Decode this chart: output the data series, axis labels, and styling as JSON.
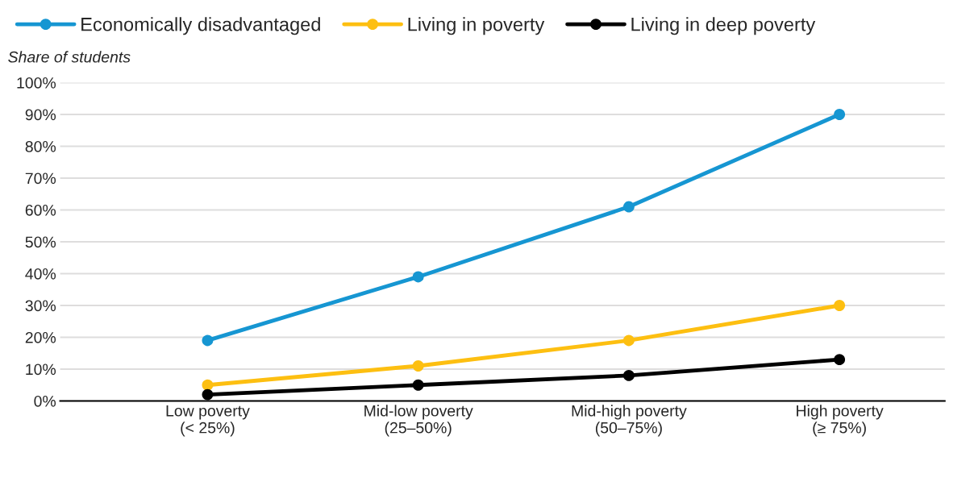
{
  "chart_data": {
    "type": "line",
    "ylabel": "Share of students",
    "categories": [
      "Low poverty\n(< 25%)",
      "Mid-low poverty\n(25–50%)",
      "Mid-high poverty\n(50–75%)",
      "High poverty\n(≥ 75%)"
    ],
    "series": [
      {
        "name": "Economically disadvantaged",
        "color": "#1696d2",
        "values": [
          19,
          39,
          61,
          90
        ]
      },
      {
        "name": "Living in poverty",
        "color": "#fdbf11",
        "values": [
          5,
          11,
          19,
          30
        ]
      },
      {
        "name": "Living in deep poverty",
        "color": "#000000",
        "values": [
          2,
          5,
          8,
          13
        ]
      }
    ],
    "ylim": [
      0,
      100
    ],
    "yticks": [
      {
        "value": 0,
        "label": "0%"
      },
      {
        "value": 10,
        "label": "10%"
      },
      {
        "value": 20,
        "label": "20%"
      },
      {
        "value": 30,
        "label": "30%"
      },
      {
        "value": 40,
        "label": "40%"
      },
      {
        "value": 50,
        "label": "50%"
      },
      {
        "value": 60,
        "label": "60%"
      },
      {
        "value": 70,
        "label": "70%"
      },
      {
        "value": 80,
        "label": "80%"
      },
      {
        "value": 90,
        "label": "90%"
      },
      {
        "value": 100,
        "label": "100%"
      }
    ],
    "grid": "y",
    "legend": "top left",
    "marker": "circle",
    "line_style": "solid"
  }
}
